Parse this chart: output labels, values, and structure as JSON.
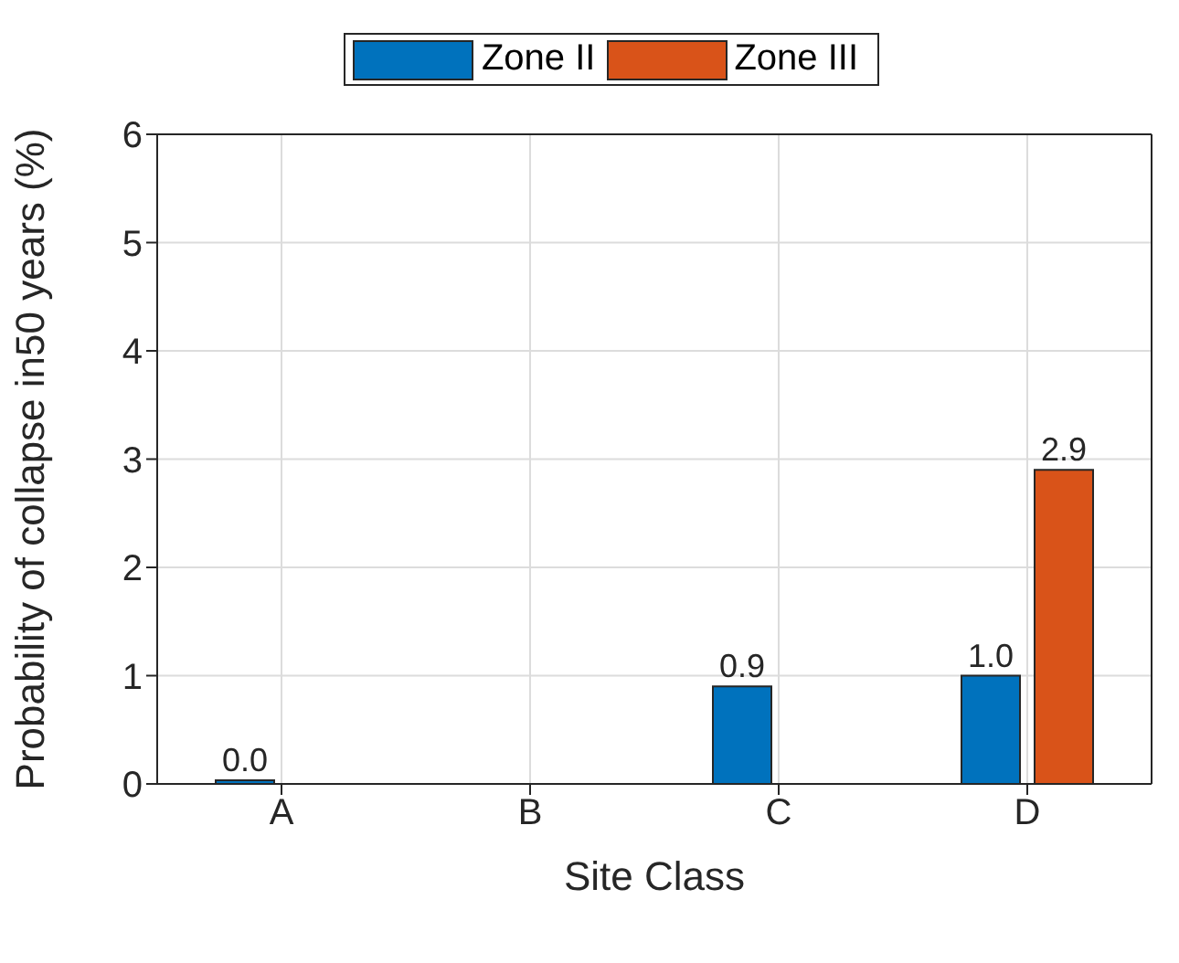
{
  "chart_data": {
    "type": "bar",
    "xlabel": "Site Class",
    "ylabel": "Probability of collapse in50 years (%)",
    "categories": [
      "A",
      "B",
      "C",
      "D"
    ],
    "series": [
      {
        "name": "Zone II",
        "color": "#0072bd",
        "values": [
          0.0,
          null,
          0.9,
          1.0
        ],
        "value_labels": [
          "0.0",
          null,
          "0.9",
          "1.0"
        ]
      },
      {
        "name": "Zone III",
        "color": "#d95319",
        "values": [
          null,
          null,
          null,
          2.9
        ],
        "value_labels": [
          null,
          null,
          null,
          "2.9"
        ]
      }
    ],
    "ylim": [
      0,
      6
    ],
    "yticks": [
      0,
      1,
      2,
      3,
      4,
      5,
      6
    ],
    "grid": true,
    "legend": "top"
  }
}
